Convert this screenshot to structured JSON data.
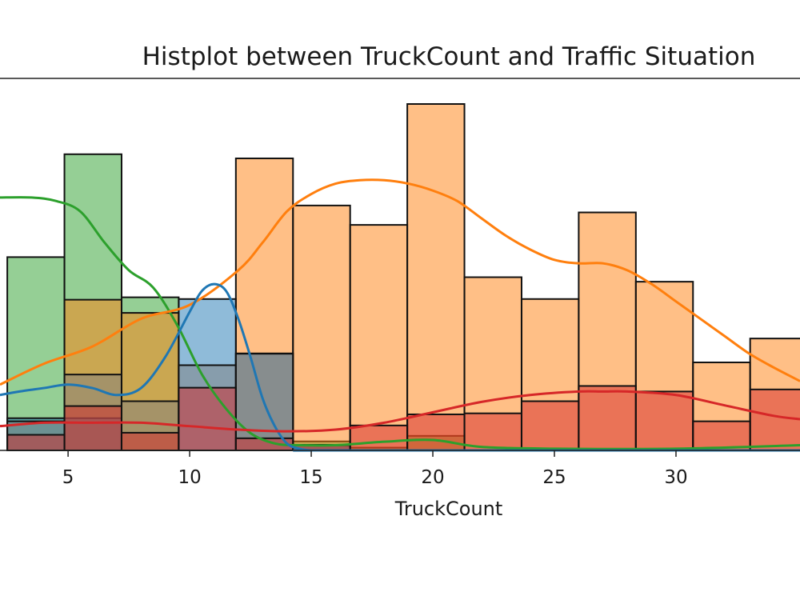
{
  "chart_data": {
    "type": "histogram",
    "title": "Histplot between TruckCount and Traffic Situation",
    "xlabel": "TruckCount",
    "xlim": [
      2.2,
      35.1
    ],
    "ylim": [
      0,
      1
    ],
    "bin_edges": [
      2.5,
      4.85,
      7.2,
      9.55,
      11.9,
      14.25,
      16.6,
      18.95,
      21.3,
      23.65,
      26.0,
      28.35,
      30.7,
      33.05,
      35.4
    ],
    "x_ticks": [
      5,
      10,
      15,
      20,
      25,
      30
    ],
    "grid": false,
    "series": [
      {
        "color": "#2ca02c",
        "values": [
          0.558,
          0.855,
          0.442,
          0,
          0,
          0.026,
          0.008,
          0.042,
          0,
          0,
          0,
          0,
          0,
          0
        ]
      },
      {
        "color": "#ff7f0e",
        "values": [
          0,
          0.435,
          0.397,
          0,
          0.843,
          0.707,
          0.651,
          1.0,
          0.5,
          0.437,
          0.687,
          0.487,
          0.254,
          0.323
        ]
      },
      {
        "color": "#1f77b4",
        "values": [
          0.093,
          0.093,
          0,
          0.437,
          0.28,
          0.014,
          0,
          0,
          0,
          0,
          0,
          0,
          0,
          0
        ]
      },
      {
        "color": "#7f7f7f",
        "values": [
          0.084,
          0.219,
          0.142,
          0.246,
          0.279,
          0.016,
          0,
          0,
          0,
          0,
          0,
          0,
          0,
          0
        ]
      },
      {
        "color": "#d62728",
        "values": [
          0.045,
          0.128,
          0.051,
          0.181,
          0.035,
          0.016,
          0.072,
          0.104,
          0.107,
          0.142,
          0.186,
          0.17,
          0.084,
          0.176
        ]
      }
    ],
    "kde": [
      {
        "color": "#2ca02c",
        "x": [
          2.2,
          3.5,
          4.5,
          5.5,
          6.5,
          7.5,
          8.5,
          9.5,
          10.5,
          11.5,
          12.5,
          13.5,
          14.5,
          16,
          18,
          20,
          22,
          25,
          30,
          35.1
        ],
        "y": [
          0.73,
          0.73,
          0.72,
          0.69,
          0.6,
          0.52,
          0.47,
          0.36,
          0.22,
          0.12,
          0.05,
          0.02,
          0.015,
          0.015,
          0.025,
          0.03,
          0.01,
          0.005,
          0.005,
          0.015
        ]
      },
      {
        "color": "#ff7f0e",
        "x": [
          2.2,
          4,
          6,
          8,
          10,
          12,
          13,
          14,
          15,
          16,
          17,
          18,
          19,
          20,
          21,
          22,
          23,
          24,
          25,
          26,
          27,
          28,
          29,
          30,
          31,
          32,
          33,
          34,
          35.1
        ],
        "y": [
          0.19,
          0.25,
          0.3,
          0.38,
          0.42,
          0.52,
          0.6,
          0.69,
          0.74,
          0.77,
          0.78,
          0.78,
          0.77,
          0.75,
          0.72,
          0.67,
          0.62,
          0.58,
          0.55,
          0.54,
          0.54,
          0.52,
          0.48,
          0.43,
          0.38,
          0.33,
          0.28,
          0.24,
          0.2
        ]
      },
      {
        "color": "#1f77b4",
        "x": [
          2.2,
          3,
          4,
          5,
          6,
          7,
          8,
          9,
          10,
          10.5,
          11,
          11.5,
          12,
          12.5,
          13,
          13.5,
          14,
          14.5,
          15,
          16,
          35.1
        ],
        "y": [
          0.16,
          0.17,
          0.18,
          0.19,
          0.18,
          0.16,
          0.18,
          0.27,
          0.4,
          0.46,
          0.48,
          0.46,
          0.38,
          0.27,
          0.15,
          0.07,
          0.02,
          0.005,
          0,
          0,
          0
        ]
      },
      {
        "color": "#d62728",
        "x": [
          2.2,
          4,
          6,
          8,
          10,
          12,
          14,
          16,
          18,
          20,
          22,
          24,
          26,
          27,
          28,
          30,
          32,
          34,
          35.1
        ],
        "y": [
          0.07,
          0.08,
          0.08,
          0.08,
          0.07,
          0.06,
          0.055,
          0.06,
          0.08,
          0.11,
          0.14,
          0.16,
          0.17,
          0.17,
          0.17,
          0.16,
          0.13,
          0.1,
          0.09
        ]
      }
    ]
  }
}
